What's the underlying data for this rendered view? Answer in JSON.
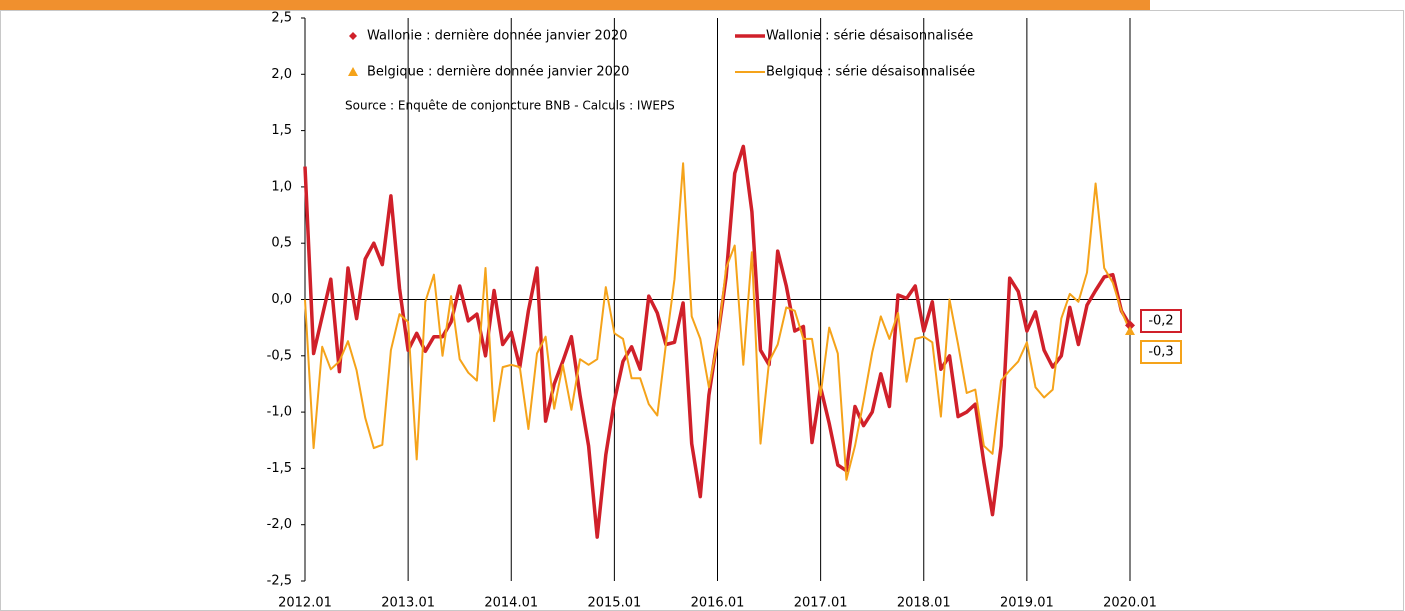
{
  "chart_data": {
    "type": "line",
    "categories": [
      "2012.01",
      null,
      null,
      null,
      null,
      null,
      null,
      null,
      null,
      null,
      null,
      null,
      "2013.01",
      null,
      null,
      null,
      null,
      null,
      null,
      null,
      null,
      null,
      null,
      null,
      "2014.01",
      null,
      null,
      null,
      null,
      null,
      null,
      null,
      null,
      null,
      null,
      null,
      "2015.01",
      null,
      null,
      null,
      null,
      null,
      null,
      null,
      null,
      null,
      null,
      null,
      "2016.01",
      null,
      null,
      null,
      null,
      null,
      null,
      null,
      null,
      null,
      null,
      null,
      "2017.01",
      null,
      null,
      null,
      null,
      null,
      null,
      null,
      null,
      null,
      null,
      null,
      "2018.01",
      null,
      null,
      null,
      null,
      null,
      null,
      null,
      null,
      null,
      null,
      null,
      "2019.01",
      null,
      null,
      null,
      null,
      null,
      null,
      null,
      null,
      null,
      null,
      null,
      "2020.01"
    ],
    "ylim": [
      -2.5,
      2.5
    ],
    "yticks": [
      {
        "value": -2.5,
        "label": "-2,5"
      },
      {
        "value": -2,
        "label": "-2,0"
      },
      {
        "value": -1.5,
        "label": "-1,5"
      },
      {
        "value": -1,
        "label": "-1,0"
      },
      {
        "value": -0.5,
        "label": "-0,5"
      },
      {
        "value": 0,
        "label": "0,0"
      },
      {
        "value": 0.5,
        "label": "0,5"
      },
      {
        "value": 1,
        "label": "1,0"
      },
      {
        "value": 1.5,
        "label": "1,5"
      },
      {
        "value": 2,
        "label": "2,0"
      },
      {
        "value": 2.5,
        "label": "2,5"
      }
    ],
    "annotation": "Source : Enquête de conjoncture BNB - Calculs : IWEPS",
    "series": [
      {
        "name": "Wallonie : dernière donnée janvier 2020",
        "color": "#d0202a",
        "marker": "diamond",
        "values": [
          null,
          null,
          null,
          null,
          null,
          null,
          null,
          null,
          null,
          null,
          null,
          null,
          null,
          null,
          null,
          null,
          null,
          null,
          null,
          null,
          null,
          null,
          null,
          null,
          null,
          null,
          null,
          null,
          null,
          null,
          null,
          null,
          null,
          null,
          null,
          null,
          null,
          null,
          null,
          null,
          null,
          null,
          null,
          null,
          null,
          null,
          null,
          null,
          null,
          null,
          null,
          null,
          null,
          null,
          null,
          null,
          null,
          null,
          null,
          null,
          null,
          null,
          null,
          null,
          null,
          null,
          null,
          null,
          null,
          null,
          null,
          null,
          null,
          null,
          null,
          null,
          null,
          null,
          null,
          null,
          null,
          null,
          null,
          null,
          null,
          null,
          null,
          null,
          null,
          null,
          null,
          null,
          null,
          null,
          null,
          null,
          -0.23
        ],
        "value_labels": [
          null,
          null,
          null,
          null,
          null,
          null,
          null,
          null,
          null,
          null,
          null,
          null,
          null,
          null,
          null,
          null,
          null,
          null,
          null,
          null,
          null,
          null,
          null,
          null,
          null,
          null,
          null,
          null,
          null,
          null,
          null,
          null,
          null,
          null,
          null,
          null,
          null,
          null,
          null,
          null,
          null,
          null,
          null,
          null,
          null,
          null,
          null,
          null,
          null,
          null,
          null,
          null,
          null,
          null,
          null,
          null,
          null,
          null,
          null,
          null,
          null,
          null,
          null,
          null,
          null,
          null,
          null,
          null,
          null,
          null,
          null,
          null,
          null,
          null,
          null,
          null,
          null,
          null,
          null,
          null,
          null,
          null,
          null,
          null,
          null,
          null,
          null,
          null,
          null,
          null,
          null,
          null,
          null,
          null,
          null,
          null,
          "-0,2"
        ]
      },
      {
        "name": "Wallonie : série désaisonnalisée",
        "color": "#d0202a",
        "marker": "line",
        "values": [
          1.18,
          -0.48,
          -0.15,
          0.18,
          -0.64,
          0.28,
          -0.17,
          0.36,
          0.5,
          0.31,
          0.92,
          0.1,
          -0.45,
          -0.3,
          -0.46,
          -0.33,
          -0.33,
          -0.2,
          0.12,
          -0.19,
          -0.13,
          -0.5,
          0.08,
          -0.4,
          -0.29,
          -0.6,
          -0.1,
          0.28,
          -1.08,
          -0.75,
          -0.55,
          -0.33,
          -0.85,
          -1.3,
          -2.11,
          -1.38,
          -0.9,
          -0.55,
          -0.42,
          -0.62,
          0.03,
          -0.12,
          -0.4,
          -0.38,
          -0.03,
          -1.28,
          -1.75,
          -0.85,
          -0.35,
          0.2,
          1.12,
          1.36,
          0.78,
          -0.45,
          -0.58,
          0.43,
          0.12,
          -0.28,
          -0.24,
          -1.27,
          -0.78,
          -1.1,
          -1.47,
          -1.52,
          -0.95,
          -1.12,
          -1.0,
          -0.66,
          -0.95,
          0.04,
          0.01,
          0.12,
          -0.28,
          -0.02,
          -0.62,
          -0.5,
          -1.04,
          -1.0,
          -0.93,
          -1.45,
          -1.91,
          -1.3,
          0.19,
          0.07,
          -0.28,
          -0.11,
          -0.45,
          -0.6,
          -0.5,
          -0.07,
          -0.4,
          -0.05,
          0.08,
          0.2,
          0.22,
          -0.1,
          -0.23
        ]
      },
      {
        "name": "Belgique : dernière donnée janvier 2020",
        "color": "#f5a31a",
        "marker": "triangle",
        "values": [
          null,
          null,
          null,
          null,
          null,
          null,
          null,
          null,
          null,
          null,
          null,
          null,
          null,
          null,
          null,
          null,
          null,
          null,
          null,
          null,
          null,
          null,
          null,
          null,
          null,
          null,
          null,
          null,
          null,
          null,
          null,
          null,
          null,
          null,
          null,
          null,
          null,
          null,
          null,
          null,
          null,
          null,
          null,
          null,
          null,
          null,
          null,
          null,
          null,
          null,
          null,
          null,
          null,
          null,
          null,
          null,
          null,
          null,
          null,
          null,
          null,
          null,
          null,
          null,
          null,
          null,
          null,
          null,
          null,
          null,
          null,
          null,
          null,
          null,
          null,
          null,
          null,
          null,
          null,
          null,
          null,
          null,
          null,
          null,
          null,
          null,
          null,
          null,
          null,
          null,
          null,
          null,
          null,
          null,
          null,
          null,
          -0.28
        ],
        "value_labels": [
          null,
          null,
          null,
          null,
          null,
          null,
          null,
          null,
          null,
          null,
          null,
          null,
          null,
          null,
          null,
          null,
          null,
          null,
          null,
          null,
          null,
          null,
          null,
          null,
          null,
          null,
          null,
          null,
          null,
          null,
          null,
          null,
          null,
          null,
          null,
          null,
          null,
          null,
          null,
          null,
          null,
          null,
          null,
          null,
          null,
          null,
          null,
          null,
          null,
          null,
          null,
          null,
          null,
          null,
          null,
          null,
          null,
          null,
          null,
          null,
          null,
          null,
          null,
          null,
          null,
          null,
          null,
          null,
          null,
          null,
          null,
          null,
          null,
          null,
          null,
          null,
          null,
          null,
          null,
          null,
          null,
          null,
          null,
          null,
          null,
          null,
          null,
          null,
          null,
          null,
          null,
          null,
          null,
          null,
          null,
          null,
          "-0,3"
        ]
      },
      {
        "name": "Belgique : série désaisonnalisée",
        "color": "#f5a31a",
        "marker": "line",
        "values": [
          0.0,
          -1.32,
          -0.42,
          -0.62,
          -0.55,
          -0.37,
          -0.63,
          -1.05,
          -1.32,
          -1.29,
          -0.45,
          -0.13,
          -0.2,
          -1.42,
          -0.02,
          0.22,
          -0.5,
          0.03,
          -0.53,
          -0.65,
          -0.72,
          0.28,
          -1.08,
          -0.6,
          -0.58,
          -0.6,
          -1.15,
          -0.48,
          -0.33,
          -0.97,
          -0.58,
          -0.98,
          -0.53,
          -0.58,
          -0.53,
          0.11,
          -0.3,
          -0.35,
          -0.7,
          -0.7,
          -0.93,
          -1.03,
          -0.4,
          0.18,
          1.21,
          -0.15,
          -0.35,
          -0.78,
          -0.38,
          0.28,
          0.48,
          -0.58,
          0.42,
          -1.28,
          -0.55,
          -0.4,
          -0.07,
          -0.1,
          -0.35,
          -0.35,
          -0.85,
          -0.25,
          -0.48,
          -1.6,
          -1.3,
          -0.9,
          -0.47,
          -0.15,
          -0.35,
          -0.12,
          -0.73,
          -0.35,
          -0.33,
          -0.38,
          -1.04,
          0.0,
          -0.4,
          -0.83,
          -0.8,
          -1.3,
          -1.37,
          -0.72,
          -0.63,
          -0.55,
          -0.38,
          -0.78,
          -0.87,
          -0.8,
          -0.17,
          0.05,
          -0.02,
          0.24,
          1.03,
          0.28,
          0.15,
          -0.1,
          -0.28
        ]
      }
    ]
  }
}
